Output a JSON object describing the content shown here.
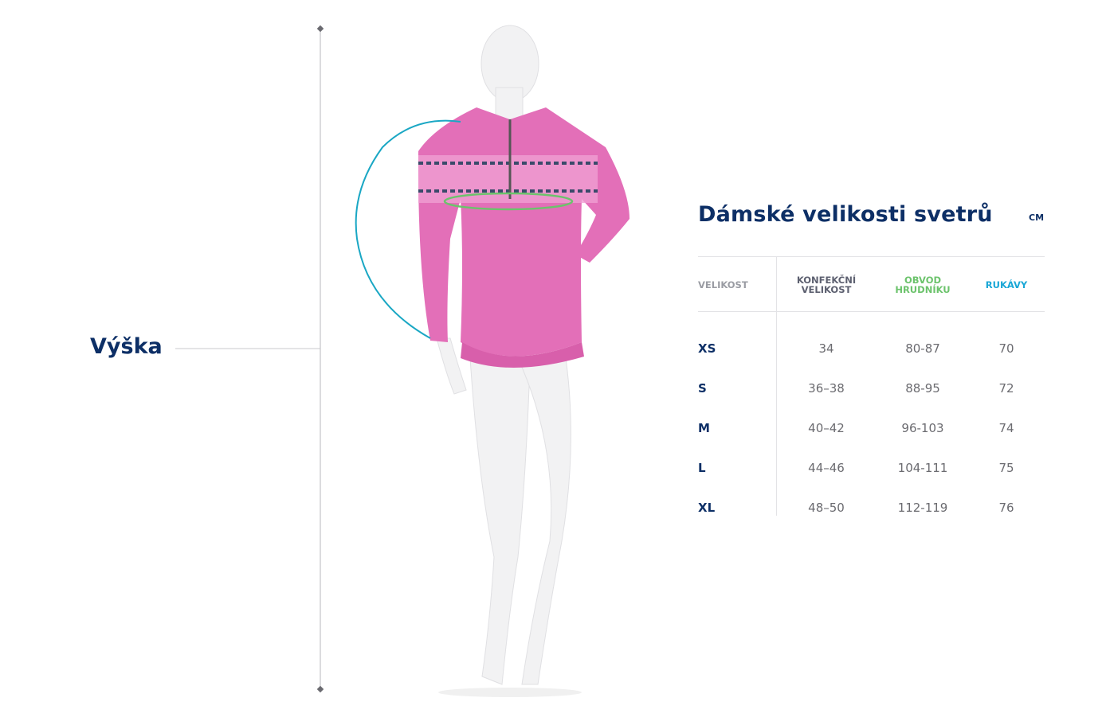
{
  "figure": {
    "height_label": "Výška",
    "sweater_color": "#e36fb8",
    "sleeve_curve_color": "#1aa7c4",
    "chest_circle_color": "#6cc36c"
  },
  "size_chart": {
    "title": "Dámské velikosti svetrů",
    "unit": "CM",
    "headers": [
      {
        "label": "VELIKOST",
        "color": "#9a9ca3"
      },
      {
        "label": "KONFEKČNÍ VELIKOST",
        "color": "#5d6070"
      },
      {
        "label": "OBVOD HRUDNÍKU",
        "color": "#6cc36c"
      },
      {
        "label": "RUKÁVY",
        "color": "#1aa7d6"
      }
    ],
    "rows": [
      {
        "size": "XS",
        "dress": "34",
        "chest": "80-87",
        "sleeves": "70"
      },
      {
        "size": "S",
        "dress": "36–38",
        "chest": "88-95",
        "sleeves": "72"
      },
      {
        "size": "M",
        "dress": "40–42",
        "chest": "96-103",
        "sleeves": "74"
      },
      {
        "size": "L",
        "dress": "44–46",
        "chest": "104-111",
        "sleeves": "75"
      },
      {
        "size": "XL",
        "dress": "48–50",
        "chest": "112-119",
        "sleeves": "76"
      }
    ]
  }
}
